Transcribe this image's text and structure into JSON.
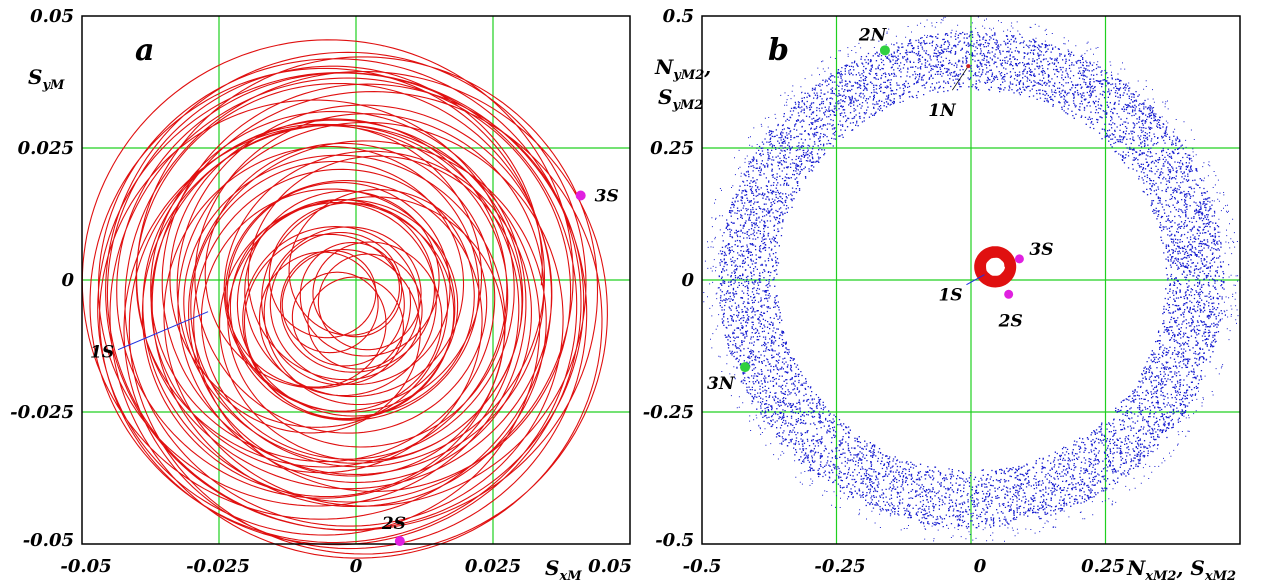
{
  "chart_data": [
    {
      "type": "line",
      "panel_label": "a",
      "xlabel": "S_xM",
      "ylabel": "S_yM",
      "xlim": [
        -0.05,
        0.05
      ],
      "ylim": [
        -0.05,
        0.05
      ],
      "grid": true,
      "x_ticks": [
        "-0.05",
        "-0.025",
        "0",
        "0.025",
        "0.05"
      ],
      "y_ticks": [
        "0.05",
        "0.025",
        "0",
        "-0.025",
        "-0.05"
      ],
      "series": [
        {
          "color": "#e01010",
          "center": [
            0.0,
            0.0
          ],
          "radius_range": [
            0.005,
            0.046
          ],
          "turns": 55
        }
      ],
      "annotations": [
        {
          "text": "1S",
          "point": [
            -0.027,
            -0.006
          ],
          "marker_color": "#2030e0"
        },
        {
          "text": "2S",
          "point": [
            0.008,
            -0.0495
          ],
          "marker_color": "#e020e0"
        },
        {
          "text": "3S",
          "point": [
            0.041,
            0.016
          ],
          "marker_color": "#e020e0"
        }
      ]
    },
    {
      "type": "scatter",
      "panel_label": "b",
      "xlabel": "N_xM2, S_xM2",
      "ylabel": "N_yM2, S_yM2",
      "xlim": [
        -0.5,
        0.5
      ],
      "ylim": [
        -0.5,
        0.5
      ],
      "grid": true,
      "x_ticks": [
        "-0.5",
        "-0.25",
        "0",
        "0.25"
      ],
      "y_ticks": [
        "0.5",
        "0.25",
        "0",
        "-0.25",
        "-0.5"
      ],
      "series": [
        {
          "color": "#1a20d0",
          "center": [
            0.0,
            0.0
          ],
          "radius_range": [
            0.36,
            0.47
          ]
        },
        {
          "color": "#e01010",
          "center": [
            0.045,
            0.025
          ],
          "radius_range": [
            0.0,
            0.045
          ]
        }
      ],
      "annotations": [
        {
          "text": "1N",
          "point": [
            -0.005,
            0.405
          ],
          "marker_color": "#d02020"
        },
        {
          "text": "2N",
          "point": [
            -0.16,
            0.435
          ],
          "marker_color": "#30d040"
        },
        {
          "text": "3N",
          "point": [
            -0.42,
            -0.165
          ],
          "marker_color": "#30d040"
        },
        {
          "text": "1S",
          "point": [
            0.025,
            0.01
          ],
          "marker_color": "#2030e0"
        },
        {
          "text": "2S",
          "point": [
            0.07,
            -0.027
          ],
          "marker_color": "#e020e0"
        },
        {
          "text": "3S",
          "point": [
            0.09,
            0.04
          ],
          "marker_color": "#e020e0"
        }
      ]
    }
  ],
  "colors": {
    "grid": "#20d020",
    "frame": "#000000"
  }
}
